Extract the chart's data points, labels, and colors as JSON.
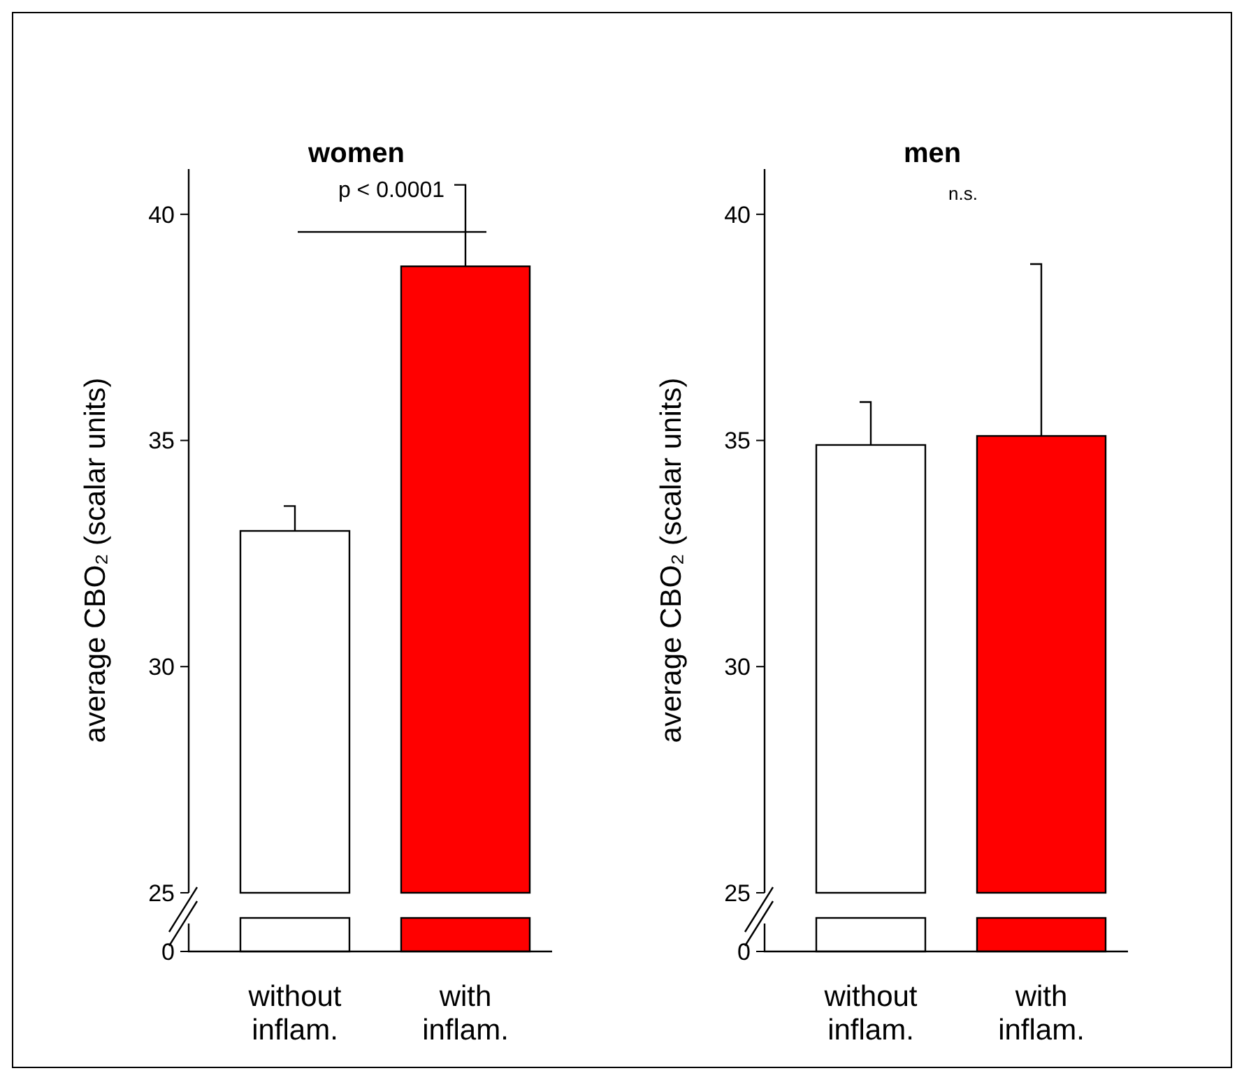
{
  "chart_data": [
    {
      "type": "bar",
      "title": "women",
      "ylabel": "average CBO₂ (scalar units)",
      "categories": [
        "without inflam.",
        "with inflam."
      ],
      "values": [
        33.0,
        38.85
      ],
      "colors": [
        "#ffffff",
        "#ff0000"
      ],
      "errors": [
        [
          33.0,
          33.55
        ],
        [
          38.85,
          40.65
        ]
      ],
      "ylim": [
        25,
        41
      ],
      "yticks": [
        25,
        30,
        35,
        40
      ],
      "annotations": [
        "0",
        "p < 0.0001"
      ]
    },
    {
      "type": "bar",
      "title": "men",
      "ylabel": "average CBO₂ (scalar units)",
      "categories": [
        "without inflam.",
        "with inflam."
      ],
      "values": [
        34.9,
        35.1
      ],
      "colors": [
        "#ffffff",
        "#ff0000"
      ],
      "errors": [
        [
          34.9,
          35.85
        ],
        [
          35.1,
          38.9
        ]
      ],
      "ylim": [
        25,
        41
      ],
      "yticks": [
        25,
        30,
        35,
        40
      ],
      "annotations": [
        "0",
        "n.s."
      ]
    }
  ]
}
